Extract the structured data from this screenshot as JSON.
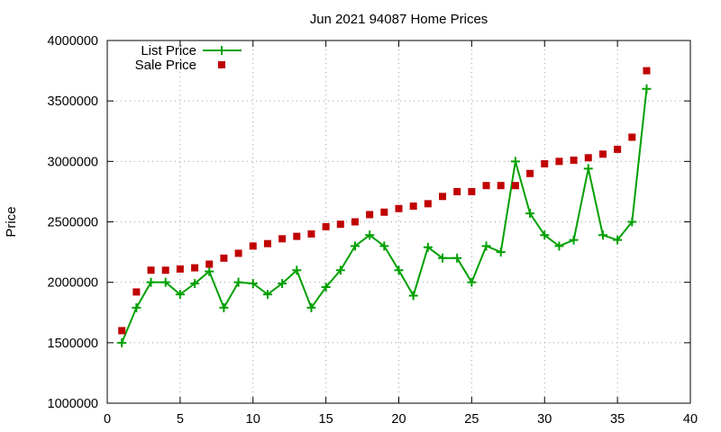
{
  "chart_data": {
    "type": "line",
    "title": "Jun 2021 94087 Home Prices",
    "xlabel": "",
    "ylabel": "Price",
    "xlim": [
      0,
      40
    ],
    "ylim": [
      1000000,
      4000000
    ],
    "xticks": [
      0,
      5,
      10,
      15,
      20,
      25,
      30,
      35,
      40
    ],
    "yticks": [
      1000000,
      1500000,
      2000000,
      2500000,
      3000000,
      3500000,
      4000000
    ],
    "xtick_labels": [
      "0",
      "5",
      "10",
      "15",
      "20",
      "25",
      "30",
      "35",
      "40"
    ],
    "ytick_labels": [
      "1000000",
      "1500000",
      "2000000",
      "2500000",
      "3000000",
      "3500000",
      "4000000"
    ],
    "grid": true,
    "legend_position": "top-left",
    "x": [
      1,
      2,
      3,
      4,
      5,
      6,
      7,
      8,
      9,
      10,
      11,
      12,
      13,
      14,
      15,
      16,
      17,
      18,
      19,
      20,
      21,
      22,
      23,
      24,
      25,
      26,
      27,
      28,
      29,
      30,
      31,
      32,
      33,
      34,
      35,
      36,
      37
    ],
    "series": [
      {
        "name": "List Price",
        "style": "line-plus",
        "color": "#00a000",
        "values": [
          1500000,
          1790000,
          2000000,
          2000000,
          1900000,
          1990000,
          2090000,
          1790000,
          2000000,
          1990000,
          1900000,
          1990000,
          2100000,
          1790000,
          1960000,
          2100000,
          2300000,
          2390000,
          2300000,
          2100000,
          1890000,
          2290000,
          2200000,
          2200000,
          2000000,
          2300000,
          2250000,
          3000000,
          2570000,
          2390000,
          2300000,
          2350000,
          2940000,
          2390000,
          2350000,
          2500000,
          3600000
        ]
      },
      {
        "name": "Sale Price",
        "style": "square",
        "color": "#c00000",
        "values": [
          1600000,
          1920000,
          2100000,
          2100000,
          2110000,
          2120000,
          2150000,
          2200000,
          2240000,
          2300000,
          2320000,
          2360000,
          2380000,
          2400000,
          2460000,
          2480000,
          2500000,
          2560000,
          2580000,
          2610000,
          2630000,
          2650000,
          2710000,
          2750000,
          2750000,
          2800000,
          2800000,
          2800000,
          2900000,
          2980000,
          3000000,
          3010000,
          3030000,
          3060000,
          3100000,
          3200000,
          3750000
        ]
      }
    ]
  }
}
